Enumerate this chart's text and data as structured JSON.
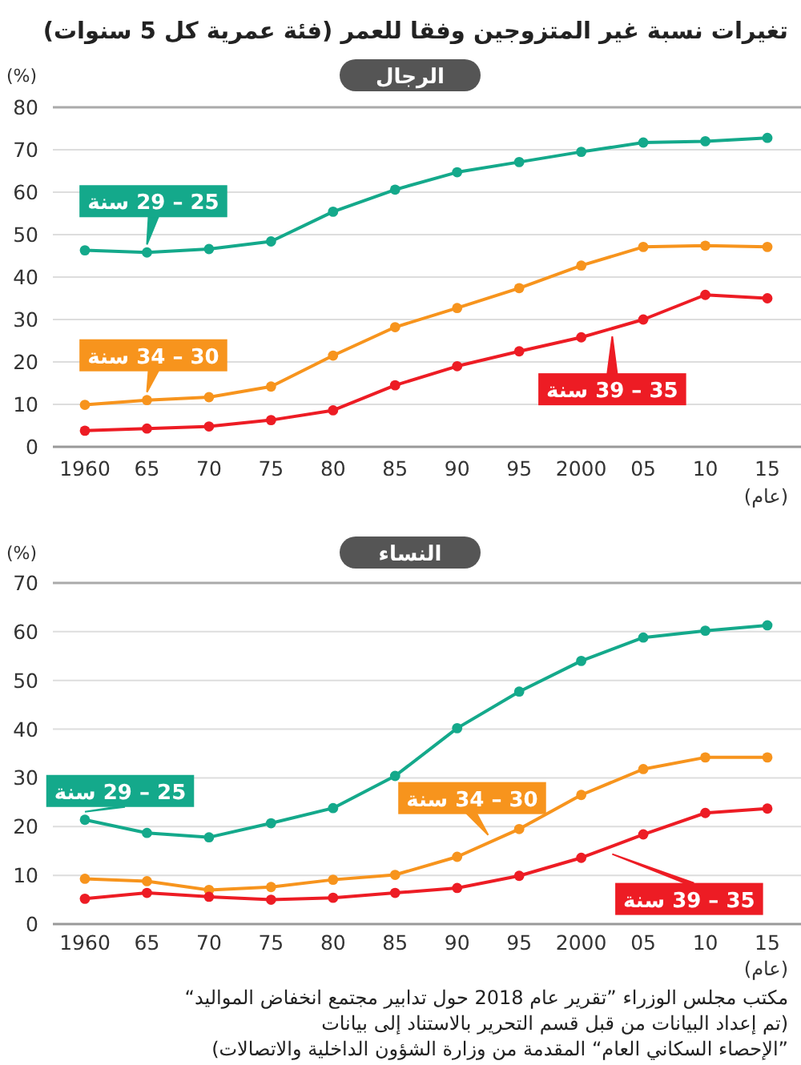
{
  "chart_data": [
    {
      "type": "line",
      "title": "تغيرات نسبة غير المتزوجين وفقا للعمر (فئة عمرية كل 5 سنوات)",
      "subtitle": "الرجال",
      "xlabel": "(عام)",
      "ylabel": "(%)",
      "categories": [
        "1960",
        "65",
        "70",
        "75",
        "80",
        "85",
        "90",
        "95",
        "2000",
        "05",
        "10",
        "15"
      ],
      "ylim": [
        0,
        80
      ],
      "yticks": [
        0,
        10,
        20,
        30,
        40,
        50,
        60,
        70,
        80
      ],
      "grid": "y",
      "marker": "circle",
      "series": [
        {
          "name": "25 – 29 سنة",
          "color": "#14a98b",
          "values": [
            46.3,
            45.8,
            46.6,
            48.4,
            55.4,
            60.6,
            64.7,
            67.1,
            69.5,
            71.7,
            72.0,
            72.8
          ]
        },
        {
          "name": "30 – 34 سنة",
          "color": "#f7941d",
          "values": [
            9.9,
            11.0,
            11.7,
            14.2,
            21.5,
            28.2,
            32.7,
            37.4,
            42.7,
            47.1,
            47.4,
            47.1
          ]
        },
        {
          "name": "35 – 39 سنة",
          "color": "#ed1c24",
          "values": [
            3.8,
            4.3,
            4.8,
            6.3,
            8.6,
            14.5,
            19.0,
            22.5,
            25.8,
            30.0,
            35.8,
            35.0
          ]
        }
      ]
    },
    {
      "type": "line",
      "subtitle": "النساء",
      "xlabel": "(عام)",
      "ylabel": "(%)",
      "categories": [
        "1960",
        "65",
        "70",
        "75",
        "80",
        "85",
        "90",
        "95",
        "2000",
        "05",
        "10",
        "15"
      ],
      "ylim": [
        0,
        70
      ],
      "yticks": [
        0,
        10,
        20,
        30,
        40,
        50,
        60,
        70
      ],
      "grid": "y",
      "marker": "circle",
      "series": [
        {
          "name": "25 – 29 سنة",
          "color": "#14a98b",
          "values": [
            21.4,
            18.7,
            17.8,
            20.7,
            23.8,
            30.4,
            40.2,
            47.7,
            54.0,
            58.8,
            60.2,
            61.3
          ]
        },
        {
          "name": "30 – 34 سنة",
          "color": "#f7941d",
          "values": [
            9.3,
            8.8,
            7.0,
            7.6,
            9.1,
            10.1,
            13.8,
            19.5,
            26.5,
            31.8,
            34.2,
            34.2
          ]
        },
        {
          "name": "35 – 39 سنة",
          "color": "#ed1c24",
          "values": [
            5.2,
            6.4,
            5.6,
            5.0,
            5.4,
            6.4,
            7.4,
            9.9,
            13.6,
            18.4,
            22.8,
            23.7
          ]
        }
      ],
      "annotations": [
        "مكتب مجلس الوزراء ”تقرير عام 2018 حول تدابير مجتمع انخفاض المواليد“",
        "(تم إعداد البيانات من قبل قسم التحرير بالاستناد إلى بيانات",
        "”الإحصاء السكاني العام“ المقدمة من وزارة الشؤون الداخلية والاتصالات)"
      ]
    }
  ]
}
